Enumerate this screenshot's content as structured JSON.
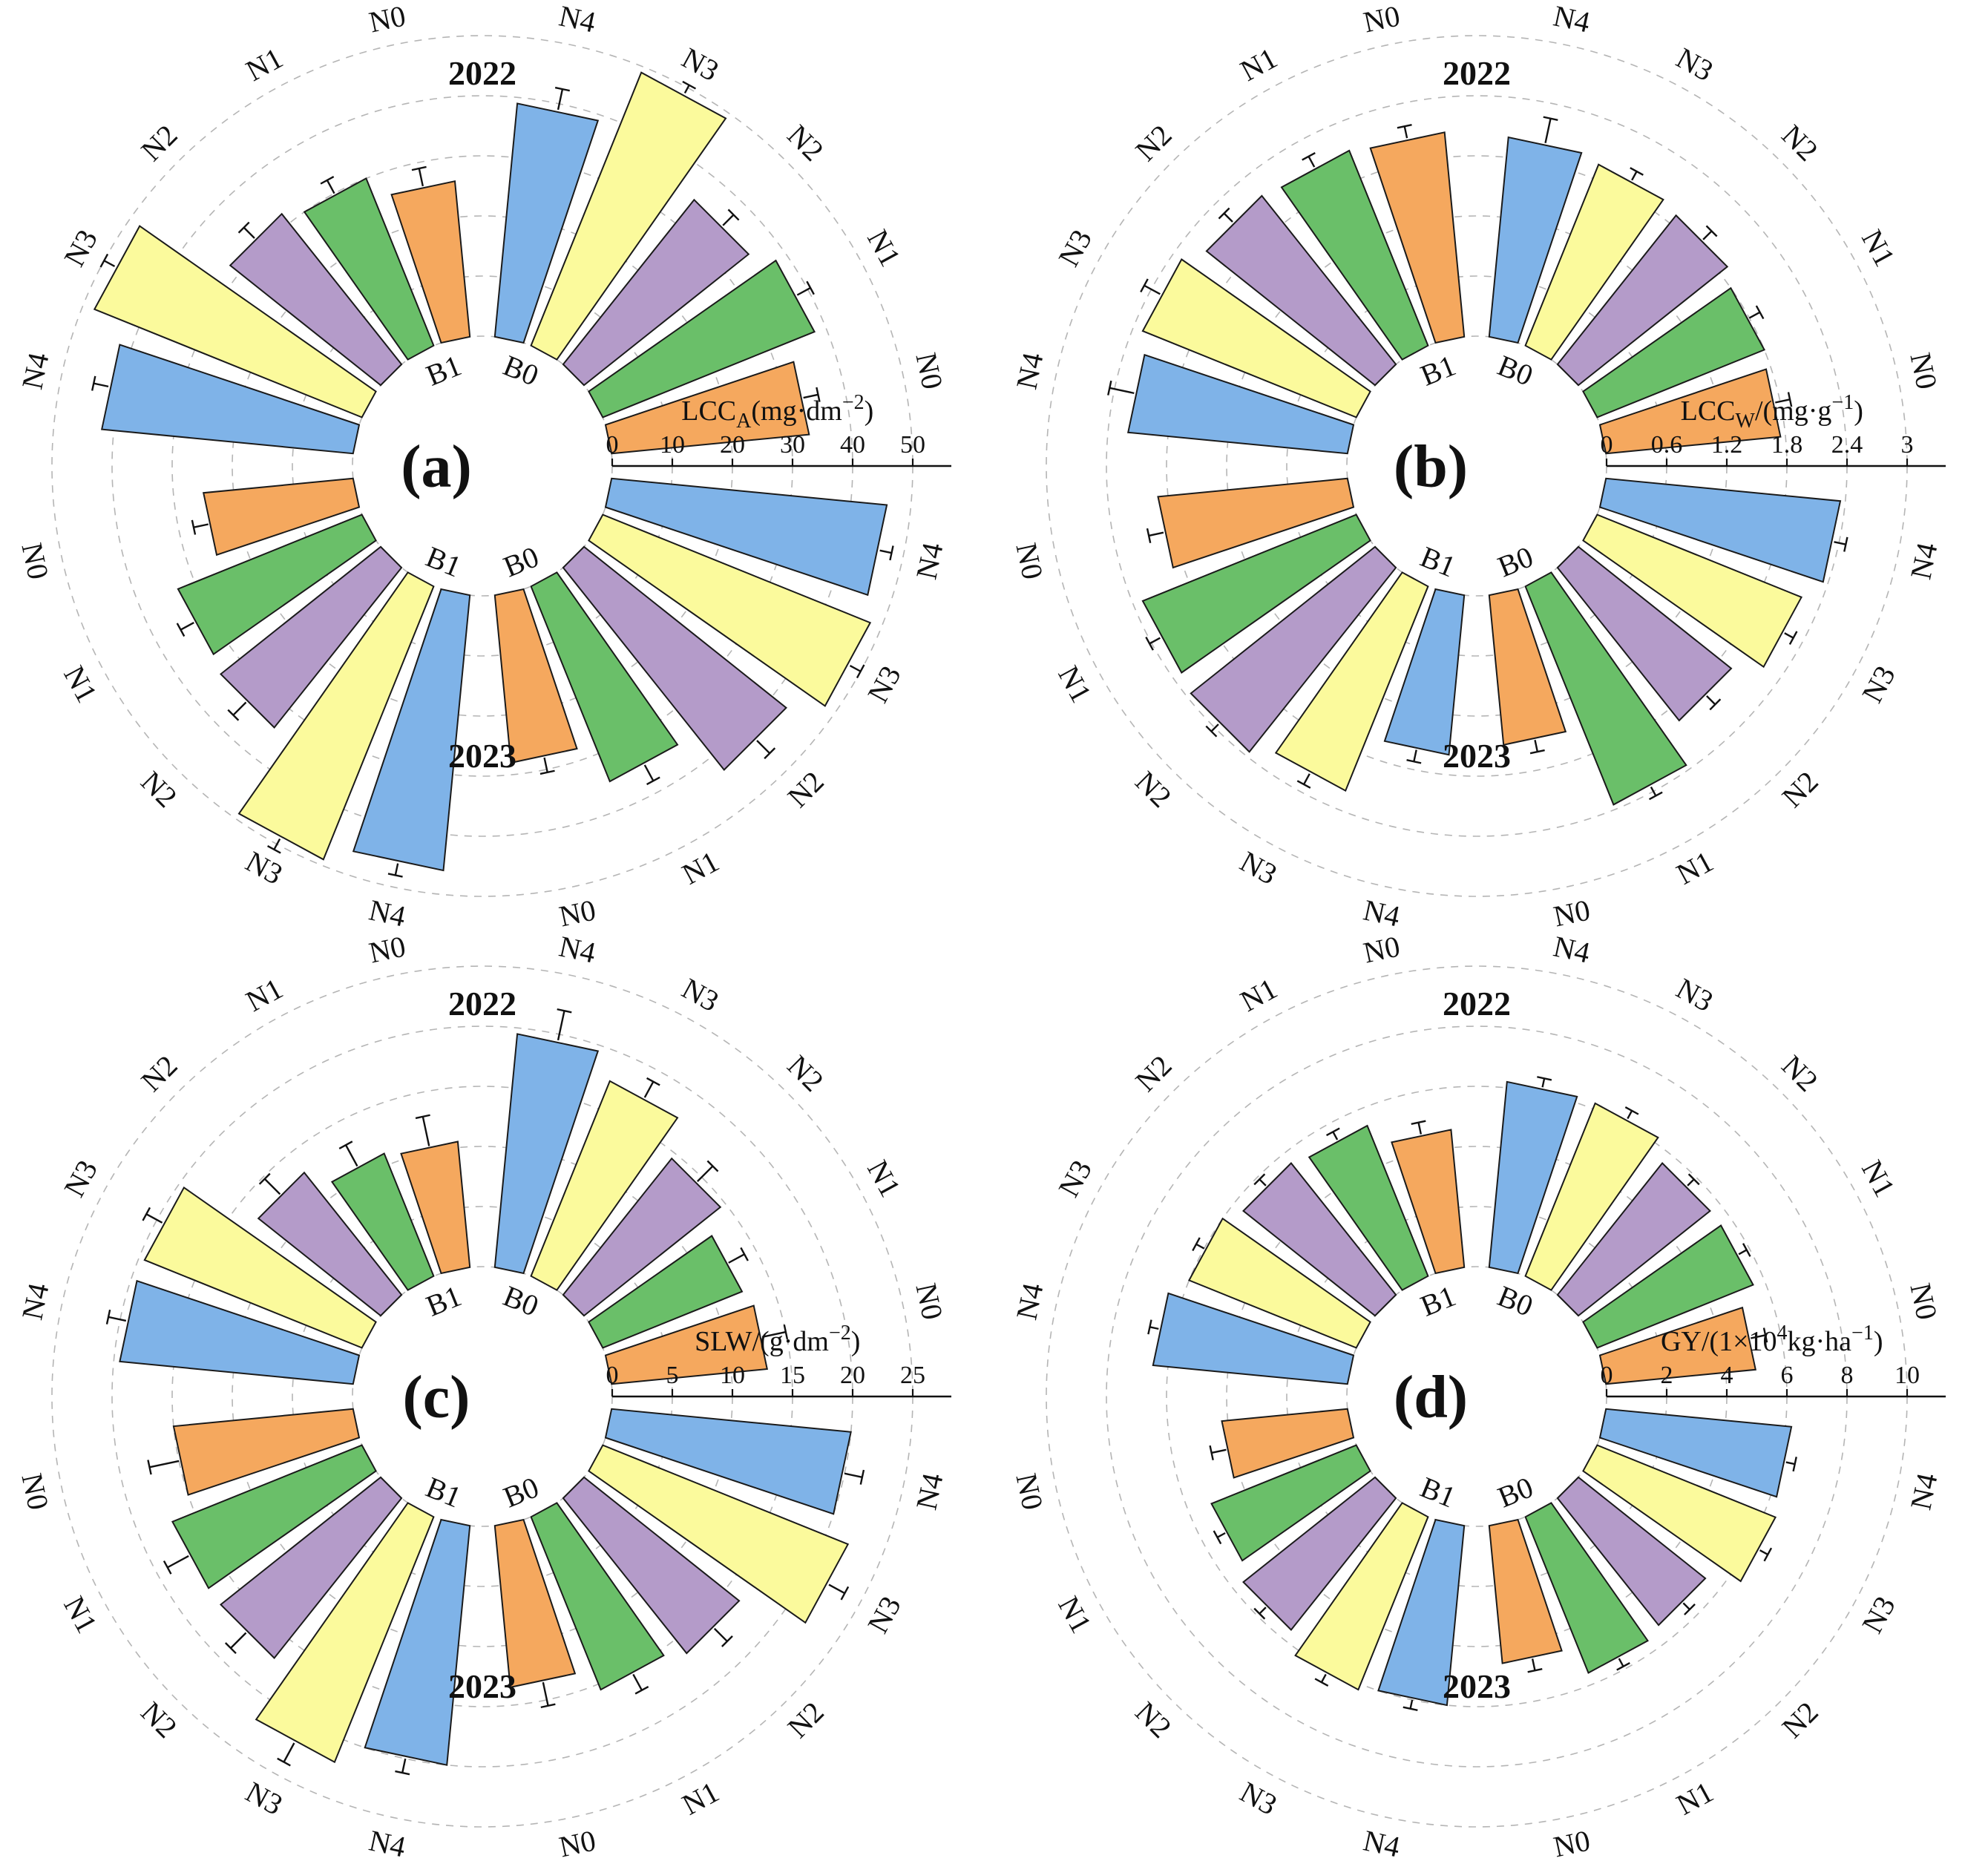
{
  "figure": {
    "background": "#ffffff",
    "bar_stroke": "#1a1a1a",
    "grid_color": "#b5b5b5",
    "text_color": "#111111",
    "n_labels": [
      "N0",
      "N1",
      "N2",
      "N3",
      "N4"
    ],
    "series_colors": {
      "N0": "#F5A85E",
      "N1": "#6ABF69",
      "N2": "#B49BC9",
      "N3": "#FBFA9C",
      "N4": "#7FB3E8"
    }
  },
  "chart_data": [
    {
      "type": "bar",
      "polar": true,
      "panel_letter": "(a)",
      "axis_title_segments": [
        {
          "t": "LCC",
          "s": "n"
        },
        {
          "t": "A",
          "s": "b"
        },
        {
          "t": "(mg·dm",
          "s": "n"
        },
        {
          "t": "−2",
          "s": "p"
        },
        {
          "t": ")",
          "s": "n"
        }
      ],
      "max": 50,
      "ticks": [
        0,
        10,
        20,
        30,
        40,
        50
      ],
      "tick_labels": [
        "0",
        "10",
        "20",
        "30",
        "40",
        "50"
      ],
      "year_top": "2022",
      "year_bottom": "2023",
      "groups": [
        {
          "year": "2022",
          "treatment": "B0",
          "values": [
            33,
            38,
            35,
            49,
            39
          ],
          "errors": [
            2.5,
            2.5,
            2.5,
            1.5,
            3.5
          ]
        },
        {
          "year": "2022",
          "treatment": "B1",
          "values": [
            26,
            30,
            32,
            48,
            42
          ],
          "errors": [
            3,
            2.5,
            2.5,
            2,
            2.5
          ]
        },
        {
          "year": "2023",
          "treatment": "B1",
          "values": [
            25,
            33,
            34,
            49,
            46
          ],
          "errors": [
            2.5,
            2.5,
            3,
            2,
            2
          ]
        },
        {
          "year": "2023",
          "treatment": "B0",
          "values": [
            28,
            35,
            43,
            48,
            46
          ],
          "errors": [
            2.5,
            3,
            3,
            2,
            2
          ]
        }
      ]
    },
    {
      "type": "bar",
      "polar": true,
      "panel_letter": "(b)",
      "axis_title_segments": [
        {
          "t": "LCC",
          "s": "n"
        },
        {
          "t": "W",
          "s": "b"
        },
        {
          "t": "/(mg·g",
          "s": "n"
        },
        {
          "t": "−1",
          "s": "p"
        },
        {
          "t": ")",
          "s": "n"
        }
      ],
      "max": 3,
      "ticks": [
        0,
        0.6,
        1.2,
        1.8,
        2.4,
        3
      ],
      "tick_labels": [
        "0",
        "0.6",
        "1.2",
        "1.8",
        "2.4",
        "3"
      ],
      "year_top": "2022",
      "year_bottom": "2023",
      "groups": [
        {
          "year": "2022",
          "treatment": "B0",
          "values": [
            1.75,
            1.8,
            1.9,
            1.95,
            2.0
          ],
          "errors": [
            0.15,
            0.12,
            0.12,
            0.1,
            0.25
          ]
        },
        {
          "year": "2022",
          "treatment": "B1",
          "values": [
            2.05,
            2.1,
            2.15,
            2.3,
            2.2
          ],
          "errors": [
            0.12,
            0.12,
            0.12,
            0.18,
            0.25
          ]
        },
        {
          "year": "2023",
          "treatment": "B1",
          "values": [
            1.9,
            2.3,
            2.35,
            2.2,
            1.6
          ],
          "errors": [
            0.15,
            0.12,
            0.1,
            0.12,
            0.12
          ]
        },
        {
          "year": "2023",
          "treatment": "B0",
          "values": [
            1.5,
            2.35,
            1.95,
            2.2,
            2.35
          ],
          "errors": [
            0.12,
            0.1,
            0.12,
            0.1,
            0.12
          ]
        }
      ]
    },
    {
      "type": "bar",
      "polar": true,
      "panel_letter": "(c)",
      "axis_title_segments": [
        {
          "t": "SLW/(g·dm",
          "s": "n"
        },
        {
          "t": "−2",
          "s": "p"
        },
        {
          "t": ")",
          "s": "n"
        }
      ],
      "max": 25,
      "ticks": [
        0,
        5,
        10,
        15,
        20,
        25
      ],
      "tick_labels": [
        "0",
        "5",
        "10",
        "15",
        "20",
        "25"
      ],
      "year_top": "2022",
      "year_bottom": "2023",
      "groups": [
        {
          "year": "2022",
          "treatment": "B0",
          "values": [
            13,
            12.5,
            14.5,
            17.5,
            19.5
          ],
          "errors": [
            2,
            1.5,
            1.8,
            1.5,
            2.5
          ]
        },
        {
          "year": "2022",
          "treatment": "B1",
          "values": [
            10.5,
            11,
            13,
            19.5,
            19.5
          ],
          "errors": [
            2.5,
            2,
            1.8,
            1.5,
            1.5
          ]
        },
        {
          "year": "2023",
          "treatment": "B1",
          "values": [
            15,
            17,
            17,
            22,
            20
          ],
          "errors": [
            2.5,
            2,
            1.8,
            1.8,
            1.2
          ]
        },
        {
          "year": "2023",
          "treatment": "B0",
          "values": [
            13.5,
            15.5,
            16.5,
            22,
            20
          ],
          "errors": [
            2,
            1.5,
            1.5,
            1.5,
            1.5
          ]
        }
      ]
    },
    {
      "type": "bar",
      "polar": true,
      "panel_letter": "(d)",
      "axis_title_segments": [
        {
          "t": "GY/(1×10",
          "s": "n"
        },
        {
          "t": "4",
          "s": "p"
        },
        {
          "t": "kg·ha",
          "s": "n"
        },
        {
          "t": "−1",
          "s": "p"
        },
        {
          "t": ")",
          "s": "n"
        }
      ],
      "max": 10,
      "ticks": [
        0,
        2,
        4,
        6,
        8,
        10
      ],
      "tick_labels": [
        "0",
        "2",
        "4",
        "6",
        "8",
        "10"
      ],
      "year_top": "2022",
      "year_bottom": "2023",
      "groups": [
        {
          "year": "2022",
          "treatment": "B0",
          "values": [
            5.0,
            5.6,
            5.6,
            6.2,
            6.2
          ],
          "errors": [
            0.5,
            0.3,
            0.3,
            0.3,
            0.3
          ]
        },
        {
          "year": "2022",
          "treatment": "B1",
          "values": [
            4.6,
            5.4,
            5.6,
            6.0,
            6.5
          ],
          "errors": [
            0.4,
            0.3,
            0.3,
            0.3,
            0.3
          ]
        },
        {
          "year": "2023",
          "treatment": "B1",
          "values": [
            4.2,
            5.2,
            5.6,
            6.2,
            6.0
          ],
          "errors": [
            0.5,
            0.3,
            0.3,
            0.3,
            0.3
          ]
        },
        {
          "year": "2023",
          "treatment": "B0",
          "values": [
            4.6,
            5.6,
            5.4,
            6.4,
            6.2
          ],
          "errors": [
            0.4,
            0.3,
            0.3,
            0.3,
            0.3
          ]
        }
      ]
    }
  ]
}
